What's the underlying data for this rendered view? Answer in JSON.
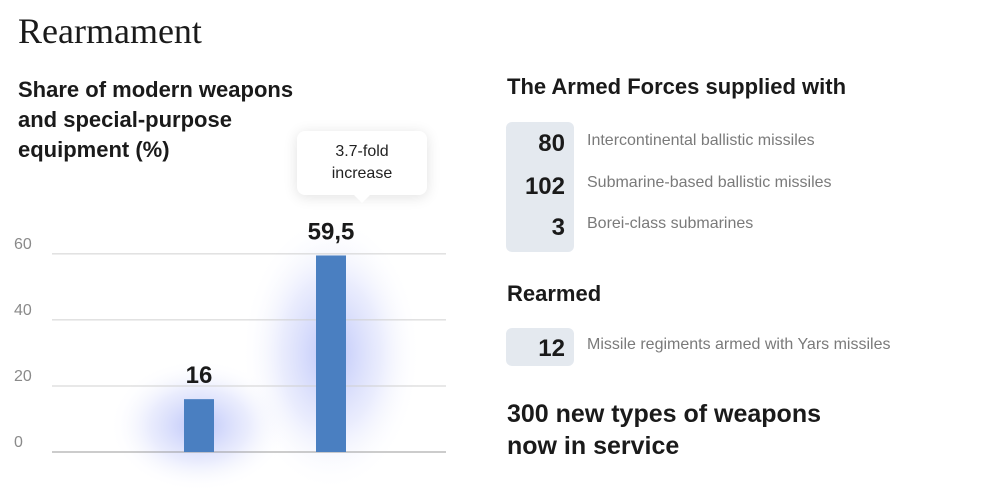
{
  "page_title": "Rearmament",
  "chart_data": {
    "type": "bar",
    "title": "Share of modern weapons and special-purpose equipment (%)",
    "categories": [
      "",
      ""
    ],
    "values": [
      16,
      59.5
    ],
    "data_labels": [
      "16",
      "59,5"
    ],
    "yticks": [
      "0",
      "20",
      "40",
      "60"
    ],
    "ylim": [
      0,
      66
    ],
    "grid": true,
    "bar_color": "#4a7fc1",
    "annotation": [
      "3.7-fold",
      "increase"
    ]
  },
  "supplied": {
    "heading": "The Armed Forces supplied with",
    "items": [
      {
        "value": "80",
        "label": "Intercontinental ballistic missiles"
      },
      {
        "value": "102",
        "label": "Submarine-based ballistic missiles"
      },
      {
        "value": "3",
        "label": "Borei-class submarines"
      }
    ]
  },
  "rearmed": {
    "heading": "Rearmed",
    "items": [
      {
        "value": "12",
        "label": "Missile regiments armed with Yars missiles"
      }
    ]
  },
  "closing": "300 new types of weapons now in service"
}
